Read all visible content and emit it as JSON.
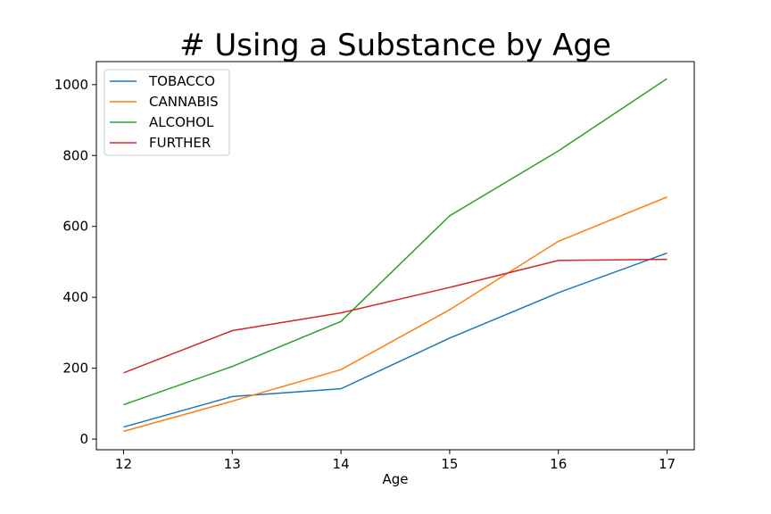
{
  "chart_data": {
    "type": "line",
    "title": "# Using a Substance by Age",
    "xlabel": "Age",
    "ylabel": "",
    "x": [
      12,
      13,
      14,
      15,
      16,
      17
    ],
    "xlim": [
      11.75,
      17.25
    ],
    "ylim": [
      -30,
      1065
    ],
    "yticks": [
      0,
      200,
      400,
      600,
      800,
      1000
    ],
    "grid": false,
    "legend_position": "top-left",
    "series": [
      {
        "name": "TOBACCO",
        "color": "#1f77b4",
        "values": [
          34,
          120,
          142,
          285,
          413,
          525
        ]
      },
      {
        "name": "CANNABIS",
        "color": "#ff7f0e",
        "values": [
          22,
          107,
          196,
          365,
          558,
          683
        ]
      },
      {
        "name": "ALCOHOL",
        "color": "#2ca02c",
        "values": [
          97,
          205,
          332,
          630,
          813,
          1017
        ]
      },
      {
        "name": "FURTHER",
        "color": "#d62728",
        "values": [
          187,
          306,
          356,
          428,
          504,
          507
        ]
      }
    ]
  }
}
